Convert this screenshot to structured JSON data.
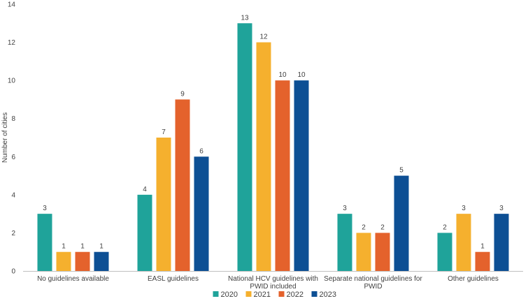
{
  "chart_data": {
    "type": "bar",
    "title": "",
    "xlabel": "",
    "ylabel": "Number of cities",
    "ylim": [
      0,
      14
    ],
    "yticks": [
      0,
      2,
      4,
      6,
      8,
      10,
      12,
      14
    ],
    "grid": false,
    "legend_position": "bottom",
    "categories": [
      [
        "No guidelines available"
      ],
      [
        "EASL guidelines"
      ],
      [
        "National HCV guidelines with",
        "PWID included"
      ],
      [
        "Separate national guidelines for",
        "PWID"
      ],
      [
        "Other guidelines"
      ]
    ],
    "series": [
      {
        "name": "2020",
        "color": "#1fa39a",
        "values": [
          3,
          4,
          13,
          3,
          2
        ]
      },
      {
        "name": "2021",
        "color": "#f5b02e",
        "values": [
          1,
          7,
          12,
          2,
          3
        ]
      },
      {
        "name": "2022",
        "color": "#e4622c",
        "values": [
          1,
          9,
          10,
          2,
          1
        ]
      },
      {
        "name": "2023",
        "color": "#0d4f94",
        "values": [
          1,
          6,
          10,
          5,
          3
        ]
      }
    ]
  }
}
